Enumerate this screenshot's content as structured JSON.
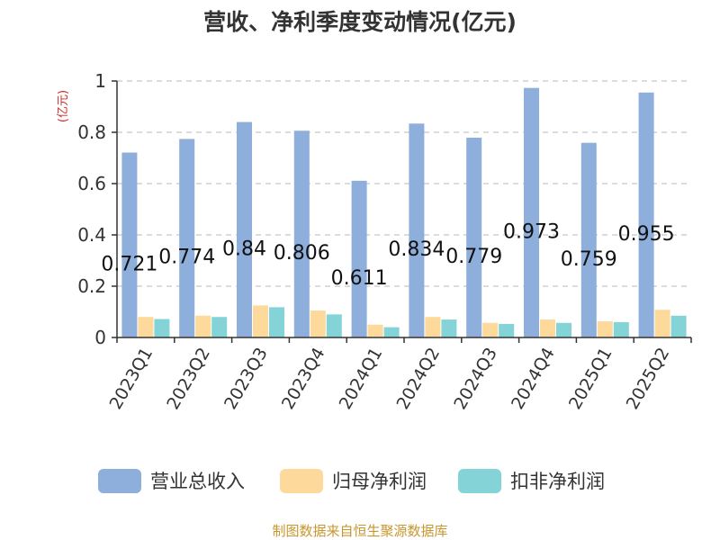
{
  "colors": {
    "revenue": "#8eaedb",
    "parent_profit": "#fdd99b",
    "nonrecurring_profit": "#84d4d7",
    "title": "#333333",
    "unit": "#d62728",
    "source": "#c8962e",
    "grid": "#c8c8c8"
  },
  "source_text": "制图数据来自恒生聚源数据库",
  "chart_data": {
    "type": "bar",
    "title": "营收、净利季度变动情况(亿元)",
    "unit_label": "(亿元)",
    "xlabel": "",
    "ylabel": "",
    "ylim": [
      0,
      1
    ],
    "yticks": [
      "0",
      "0.2",
      "0.4",
      "0.6",
      "0.8",
      "1"
    ],
    "grid": true,
    "legend_position": "bottom",
    "categories": [
      "2023Q1",
      "2023Q2",
      "2023Q3",
      "2023Q4",
      "2024Q1",
      "2024Q2",
      "2024Q3",
      "2024Q4",
      "2025Q1",
      "2025Q2"
    ],
    "series": [
      {
        "name": "营业总收入",
        "values": [
          0.721,
          0.774,
          0.84,
          0.806,
          0.611,
          0.834,
          0.779,
          0.973,
          0.759,
          0.955
        ],
        "labels": [
          "0.721",
          "0.774",
          "0.84",
          "0.806",
          "0.611",
          "0.834",
          "0.779",
          "0.973",
          "0.759",
          "0.955"
        ]
      },
      {
        "name": "归母净利润",
        "values": [
          0.08,
          0.085,
          0.125,
          0.105,
          0.05,
          0.08,
          0.057,
          0.07,
          0.063,
          0.108
        ]
      },
      {
        "name": "扣非净利润",
        "values": [
          0.072,
          0.08,
          0.118,
          0.09,
          0.04,
          0.07,
          0.053,
          0.057,
          0.06,
          0.085
        ]
      }
    ]
  }
}
